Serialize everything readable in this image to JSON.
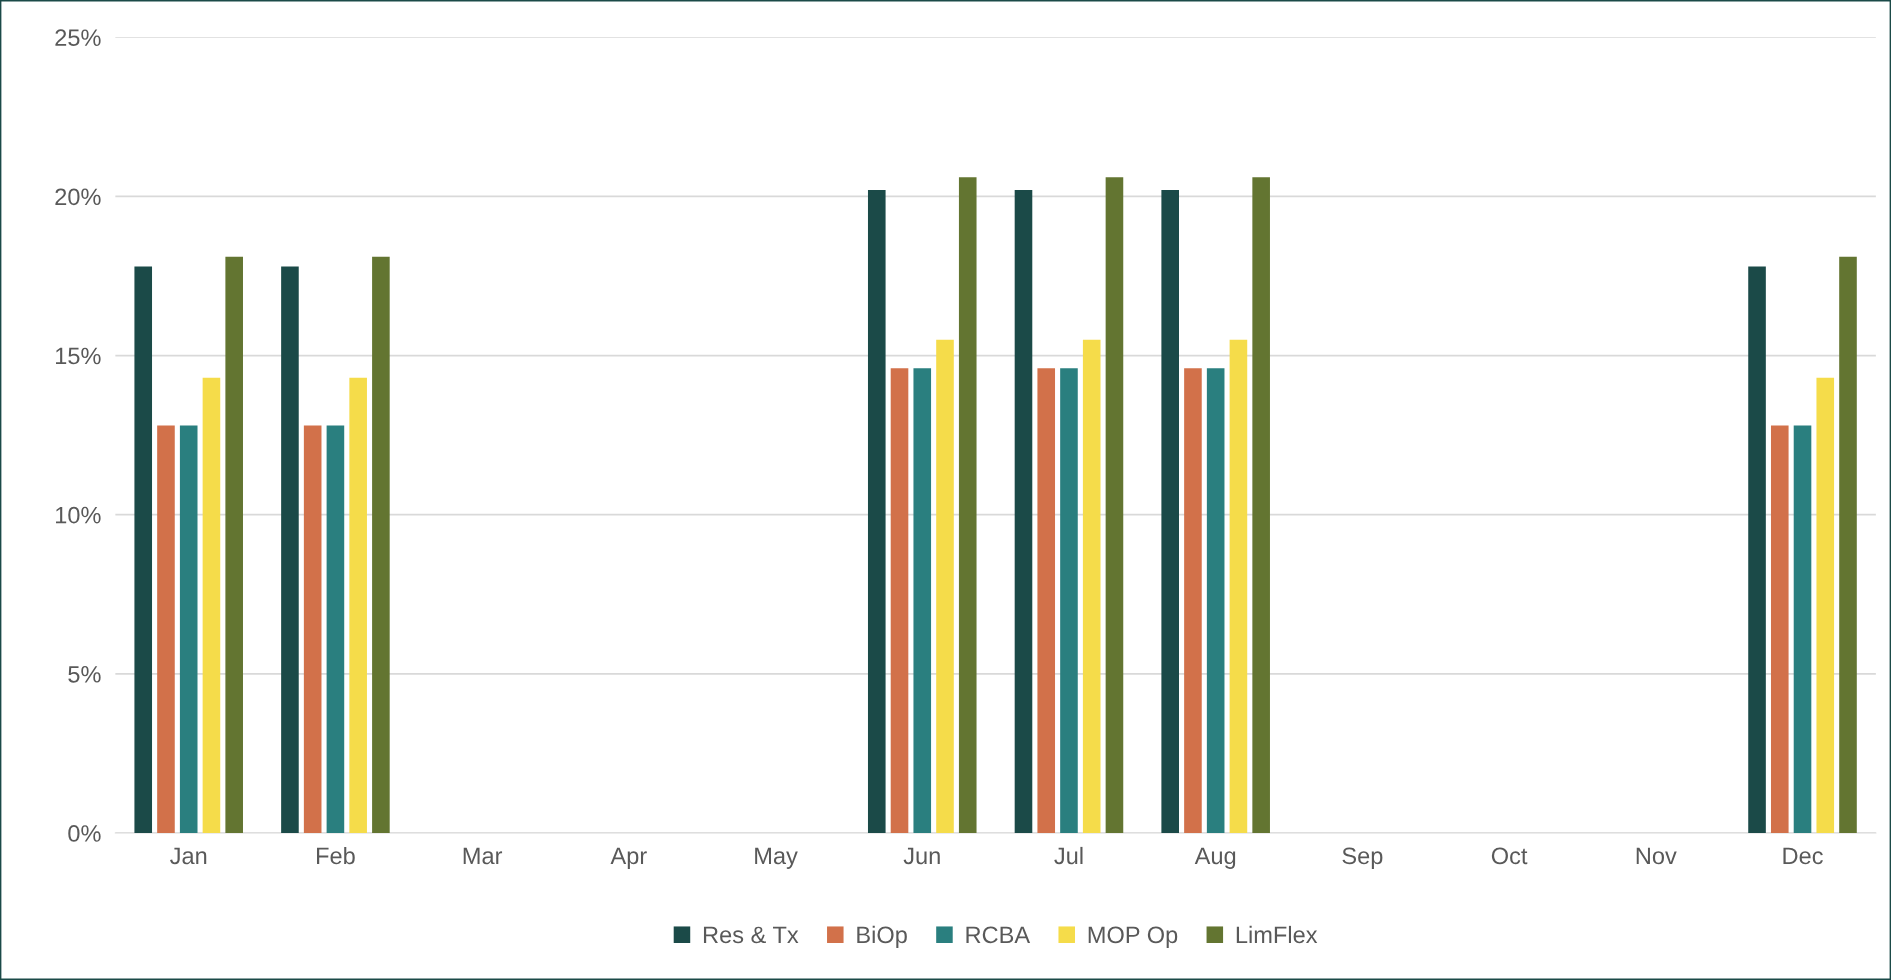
{
  "chart_data": {
    "type": "bar",
    "categories": [
      "Jan",
      "Feb",
      "Mar",
      "Apr",
      "May",
      "Jun",
      "Jul",
      "Aug",
      "Sep",
      "Oct",
      "Nov",
      "Dec"
    ],
    "series": [
      {
        "name": "Res & Tx",
        "color": "#1b4a48",
        "values": [
          17.8,
          17.8,
          null,
          null,
          null,
          20.2,
          20.2,
          20.2,
          null,
          null,
          null,
          17.8
        ]
      },
      {
        "name": "BiOp",
        "color": "#d2714a",
        "values": [
          12.8,
          12.8,
          null,
          null,
          null,
          14.6,
          14.6,
          14.6,
          null,
          null,
          null,
          12.8
        ]
      },
      {
        "name": "RCBA",
        "color": "#2a7f7f",
        "values": [
          12.8,
          12.8,
          null,
          null,
          null,
          14.6,
          14.6,
          14.6,
          null,
          null,
          null,
          12.8
        ]
      },
      {
        "name": "MOP Op",
        "color": "#f5dc4a",
        "values": [
          14.3,
          14.3,
          null,
          null,
          null,
          15.5,
          15.5,
          15.5,
          null,
          null,
          null,
          14.3
        ]
      },
      {
        "name": "LimFlex",
        "color": "#637531",
        "values": [
          18.1,
          18.1,
          null,
          null,
          null,
          20.6,
          20.6,
          20.6,
          null,
          null,
          null,
          18.1
        ]
      }
    ],
    "ylim": [
      0,
      25
    ],
    "yticks": [
      {
        "value": 0,
        "label": "0%"
      },
      {
        "value": 5,
        "label": "5%"
      },
      {
        "value": 10,
        "label": "10%"
      },
      {
        "value": 15,
        "label": "15%"
      },
      {
        "value": 20,
        "label": "20%"
      },
      {
        "value": 25,
        "label": "25%"
      }
    ],
    "grid": "y",
    "legend": "bottom"
  }
}
